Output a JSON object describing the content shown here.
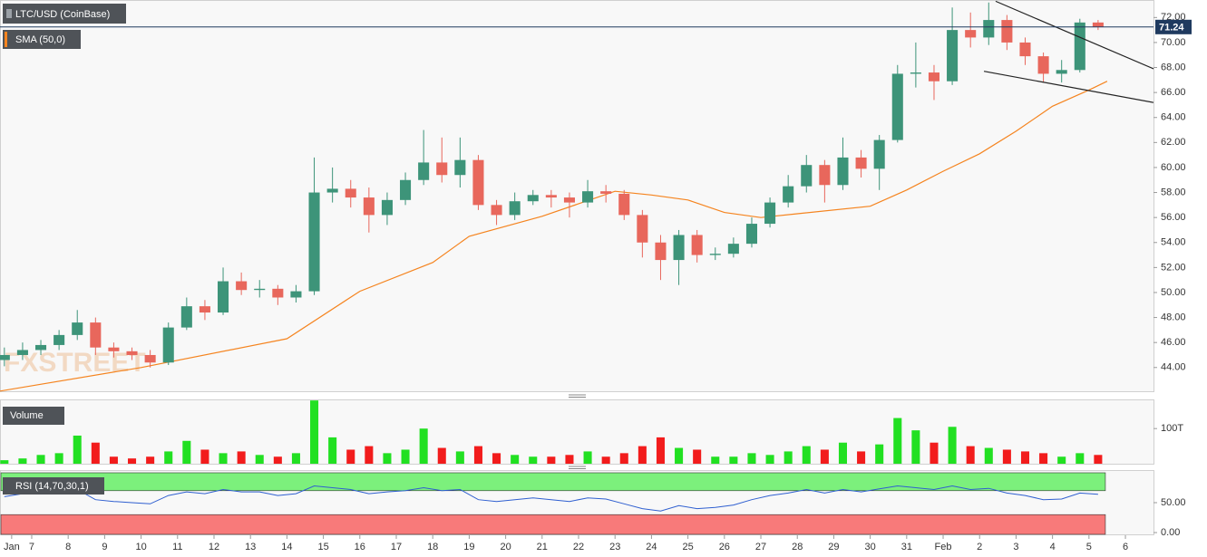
{
  "chart_data": {
    "type": "candlestick",
    "title": "LTC/USD (CoinBase)",
    "watermark": "FXSTREET",
    "xlim": [
      6.13,
      37.77
    ],
    "ylim": [
      42.1,
      73.4
    ],
    "yticks": [
      {
        "value": 44,
        "label": "44.00"
      },
      {
        "value": 46,
        "label": "46.00"
      },
      {
        "value": 48,
        "label": "48.00"
      },
      {
        "value": 50,
        "label": "50.00"
      },
      {
        "value": 52,
        "label": "52.00"
      },
      {
        "value": 54,
        "label": "54.00"
      },
      {
        "value": 56,
        "label": "56.00"
      },
      {
        "value": 58,
        "label": "58.00"
      },
      {
        "value": 60,
        "label": "60.00"
      },
      {
        "value": 62,
        "label": "62.00"
      },
      {
        "value": 64,
        "label": "64.00"
      },
      {
        "value": 66,
        "label": "66.00"
      },
      {
        "value": 68,
        "label": "68.00"
      },
      {
        "value": 70,
        "label": "70.00"
      },
      {
        "value": 72,
        "label": "72.00"
      }
    ],
    "xticks": [
      {
        "value": 6.45,
        "label": "Jan"
      },
      7,
      8,
      9,
      10,
      11,
      12,
      13,
      14,
      15,
      16,
      17,
      18,
      19,
      20,
      21,
      22,
      23,
      24,
      25,
      26,
      27,
      28,
      29,
      30,
      31,
      {
        "value": 32,
        "label": "Feb"
      },
      {
        "value": 33,
        "label": "2"
      },
      {
        "value": 34,
        "label": "3"
      },
      {
        "value": 35,
        "label": "4"
      },
      {
        "value": 36,
        "label": "5"
      },
      {
        "value": 37,
        "label": "6"
      }
    ],
    "up_color": "#3d9479",
    "down_color": "#e8675c",
    "x": [
      6.25,
      6.75,
      7.25,
      7.75,
      8.25,
      8.75,
      9.25,
      9.75,
      10.25,
      10.75,
      11.25,
      11.75,
      12.25,
      12.75,
      13.25,
      13.75,
      14.25,
      14.75,
      15.25,
      15.75,
      16.25,
      16.75,
      17.25,
      17.75,
      18.25,
      18.75,
      19.25,
      19.75,
      20.25,
      20.75,
      21.25,
      21.75,
      22.25,
      22.75,
      23.25,
      23.75,
      24.25,
      24.75,
      25.25,
      25.75,
      26.25,
      26.75,
      27.25,
      27.75,
      28.25,
      28.75,
      29.25,
      29.75,
      30.25,
      30.75,
      31.25,
      31.75,
      32.25,
      32.75,
      33.25,
      33.75,
      34.25,
      34.75,
      35.25,
      35.75,
      36.25
    ],
    "open": [
      44.6,
      45.0,
      45.4,
      45.8,
      46.6,
      47.6,
      45.6,
      45.3,
      45.0,
      44.4,
      47.2,
      48.9,
      48.4,
      50.9,
      50.2,
      50.3,
      49.6,
      50.1,
      58.0,
      58.3,
      57.6,
      56.2,
      57.4,
      59.0,
      60.4,
      59.4,
      60.6,
      57.0,
      56.2,
      57.3,
      57.8,
      57.6,
      57.2,
      58.1,
      57.9,
      56.2,
      54.0,
      52.6,
      54.6,
      53.0,
      53.1,
      53.9,
      55.5,
      57.2,
      58.5,
      60.2,
      58.6,
      60.8,
      59.9,
      62.2,
      67.5,
      67.6,
      66.9,
      71.0,
      70.4,
      71.8,
      70.0,
      68.9,
      67.5,
      67.8,
      71.6
    ],
    "high": [
      45.6,
      46.0,
      46.2,
      47.0,
      48.6,
      48.0,
      46.0,
      45.6,
      45.4,
      47.6,
      49.6,
      49.4,
      52.0,
      51.6,
      51.0,
      50.6,
      50.6,
      60.8,
      60.0,
      59.0,
      58.4,
      58.0,
      59.6,
      63.0,
      62.4,
      62.4,
      61.0,
      57.4,
      58.0,
      58.2,
      58.2,
      58.0,
      59.0,
      58.6,
      58.2,
      56.6,
      54.6,
      55.0,
      55.0,
      53.6,
      54.4,
      56.0,
      57.6,
      59.4,
      61.0,
      60.6,
      62.4,
      61.4,
      62.6,
      68.2,
      70.0,
      68.2,
      72.8,
      72.4,
      73.2,
      72.2,
      70.4,
      69.2,
      68.6,
      71.9,
      71.8
    ],
    "low": [
      44.1,
      44.6,
      45.0,
      45.4,
      46.2,
      45.0,
      44.8,
      44.6,
      44.0,
      44.2,
      47.0,
      47.8,
      48.2,
      49.8,
      49.6,
      49.0,
      49.2,
      49.8,
      57.2,
      56.8,
      54.8,
      55.4,
      57.0,
      58.6,
      58.8,
      58.4,
      56.6,
      55.4,
      55.8,
      57.0,
      56.8,
      56.0,
      56.8,
      57.2,
      55.8,
      52.8,
      51.0,
      50.6,
      52.4,
      52.6,
      52.8,
      53.6,
      55.2,
      56.8,
      58.0,
      57.2,
      58.2,
      59.2,
      58.2,
      62.0,
      66.4,
      65.4,
      66.6,
      69.6,
      69.8,
      69.4,
      68.2,
      66.8,
      66.8,
      67.6,
      71.0
    ],
    "close": [
      45.0,
      45.4,
      45.8,
      46.6,
      47.6,
      45.6,
      45.3,
      45.0,
      44.4,
      47.2,
      48.9,
      48.4,
      50.9,
      50.2,
      50.3,
      49.6,
      50.1,
      58.0,
      58.3,
      57.6,
      56.2,
      57.4,
      59.0,
      60.4,
      59.4,
      60.6,
      57.0,
      56.2,
      57.3,
      57.8,
      57.6,
      57.2,
      58.1,
      57.9,
      56.2,
      54.0,
      52.6,
      54.6,
      53.0,
      53.1,
      53.9,
      55.5,
      57.2,
      58.5,
      60.2,
      58.6,
      60.8,
      59.9,
      62.2,
      67.5,
      67.6,
      66.9,
      71.0,
      70.4,
      71.8,
      70.0,
      68.9,
      67.5,
      67.8,
      71.6,
      71.24
    ],
    "last_price": 71.24,
    "last_price_color": "#1f3a5f",
    "sma": {
      "name": "SMA (50,0)",
      "color": "#f5841f",
      "x": [
        6.1,
        10,
        14,
        16,
        18,
        19,
        21,
        23,
        24,
        25,
        26,
        27,
        28,
        30,
        31,
        32,
        33,
        34,
        35,
        36,
        36.5
      ],
      "values": [
        42.1,
        44.0,
        46.3,
        50.1,
        52.4,
        54.5,
        56.1,
        58.1,
        57.8,
        57.4,
        56.4,
        56.0,
        56.3,
        56.9,
        58.2,
        59.7,
        61.1,
        62.9,
        64.9,
        66.2,
        66.9
      ]
    },
    "trendlines": [
      {
        "x": [
          33.44,
          37.77
        ],
        "values": [
          73.3,
          67.9
        ]
      },
      {
        "x": [
          33.12,
          37.77
        ],
        "values": [
          67.7,
          65.2
        ]
      }
    ],
    "volume": {
      "title": "Volume",
      "ylim": [
        0,
        183
      ],
      "yticks": [
        {
          "value": 100,
          "label": "100T"
        }
      ],
      "up_color": "#22e022",
      "down_color": "#f21c1c",
      "values": [
        10,
        15,
        25,
        30,
        80,
        60,
        20,
        15,
        20,
        35,
        65,
        40,
        30,
        35,
        25,
        20,
        30,
        180,
        75,
        40,
        50,
        30,
        40,
        100,
        45,
        35,
        50,
        30,
        25,
        20,
        20,
        25,
        35,
        20,
        30,
        50,
        75,
        45,
        40,
        20,
        20,
        30,
        25,
        35,
        50,
        40,
        60,
        35,
        55,
        130,
        95,
        60,
        105,
        50,
        45,
        40,
        35,
        30,
        20,
        30,
        25
      ]
    },
    "rsi": {
      "title": "RSI (14,70,30,1)",
      "color": "#2f5fd0",
      "ylim": [
        -3,
        103
      ],
      "yticks": [
        {
          "value": 50,
          "label": "50.00"
        },
        {
          "value": 0,
          "label": "0.00"
        }
      ],
      "upper": 70,
      "lower": 30,
      "upper_color": "#7cf07c",
      "lower_color": "#f87a7a",
      "values": [
        60,
        65,
        70,
        68,
        72,
        55,
        52,
        50,
        48,
        62,
        68,
        65,
        72,
        68,
        68,
        62,
        65,
        78,
        75,
        72,
        65,
        68,
        70,
        75,
        70,
        72,
        55,
        52,
        55,
        58,
        55,
        52,
        58,
        56,
        48,
        40,
        36,
        45,
        40,
        42,
        46,
        55,
        62,
        66,
        72,
        66,
        72,
        68,
        73,
        78,
        75,
        72,
        78,
        72,
        74,
        66,
        62,
        55,
        56,
        66,
        64
      ]
    }
  }
}
